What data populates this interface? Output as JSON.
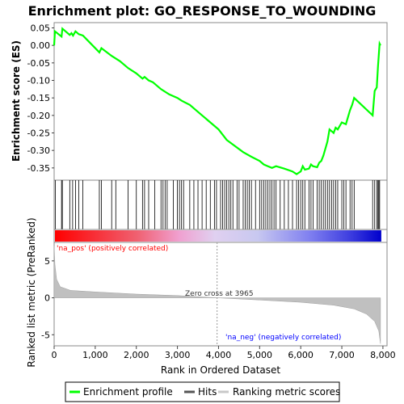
{
  "chart_data": {
    "type": "line",
    "title": "Enrichment plot: GO_RESPONSE_TO_WOUNDING",
    "xlabel": "Rank in Ordered Dataset",
    "ylabel_top": "Enrichment score (ES)",
    "ylabel_bottom": "Ranked list metric (PreRanked)",
    "xlim": [
      0,
      8100
    ],
    "ylim_top": [
      -0.385,
      0.065
    ],
    "ylim_bottom": [
      -6.5,
      7.5
    ],
    "x_ticks": [
      0,
      1000,
      2000,
      3000,
      4000,
      5000,
      6000,
      7000,
      8000
    ],
    "x_tick_labels": [
      "0",
      "1,000",
      "2,000",
      "3,000",
      "4,000",
      "5,000",
      "6,000",
      "7,000",
      "8,000"
    ],
    "y_ticks_top": [
      0.05,
      0.0,
      -0.05,
      -0.1,
      -0.15,
      -0.2,
      -0.25,
      -0.3,
      -0.35
    ],
    "y_tick_labels_top": [
      "0.05",
      "0.00",
      "-0.05",
      "-0.10",
      "-0.15",
      "-0.20",
      "-0.25",
      "-0.30",
      "-0.35"
    ],
    "y_ticks_bottom": [
      5,
      0,
      -5
    ],
    "y_tick_labels_bottom": [
      "5",
      "0",
      "-5"
    ],
    "enrichment_profile": [
      [
        0,
        0.0
      ],
      [
        20,
        0.04
      ],
      [
        180,
        0.025
      ],
      [
        200,
        0.048
      ],
      [
        380,
        0.03
      ],
      [
        420,
        0.035
      ],
      [
        460,
        0.028
      ],
      [
        520,
        0.04
      ],
      [
        600,
        0.032
      ],
      [
        700,
        0.028
      ],
      [
        1100,
        -0.02
      ],
      [
        1150,
        -0.008
      ],
      [
        1400,
        -0.03
      ],
      [
        1600,
        -0.045
      ],
      [
        1800,
        -0.065
      ],
      [
        2000,
        -0.08
      ],
      [
        2150,
        -0.095
      ],
      [
        2200,
        -0.09
      ],
      [
        2300,
        -0.1
      ],
      [
        2400,
        -0.105
      ],
      [
        2600,
        -0.125
      ],
      [
        2800,
        -0.14
      ],
      [
        3000,
        -0.15
      ],
      [
        3100,
        -0.158
      ],
      [
        3300,
        -0.17
      ],
      [
        3600,
        -0.2
      ],
      [
        4000,
        -0.24
      ],
      [
        4200,
        -0.27
      ],
      [
        4600,
        -0.305
      ],
      [
        4800,
        -0.318
      ],
      [
        5000,
        -0.33
      ],
      [
        5100,
        -0.34
      ],
      [
        5200,
        -0.345
      ],
      [
        5300,
        -0.35
      ],
      [
        5400,
        -0.345
      ],
      [
        5600,
        -0.352
      ],
      [
        5800,
        -0.36
      ],
      [
        5900,
        -0.368
      ],
      [
        6000,
        -0.36
      ],
      [
        6050,
        -0.345
      ],
      [
        6100,
        -0.355
      ],
      [
        6200,
        -0.352
      ],
      [
        6250,
        -0.34
      ],
      [
        6300,
        -0.345
      ],
      [
        6400,
        -0.348
      ],
      [
        6450,
        -0.335
      ],
      [
        6500,
        -0.33
      ],
      [
        6550,
        -0.315
      ],
      [
        6600,
        -0.295
      ],
      [
        6650,
        -0.275
      ],
      [
        6700,
        -0.24
      ],
      [
        6800,
        -0.25
      ],
      [
        6850,
        -0.235
      ],
      [
        6900,
        -0.24
      ],
      [
        7000,
        -0.22
      ],
      [
        7100,
        -0.225
      ],
      [
        7200,
        -0.185
      ],
      [
        7250,
        -0.17
      ],
      [
        7300,
        -0.15
      ],
      [
        7750,
        -0.2
      ],
      [
        7800,
        -0.13
      ],
      [
        7850,
        -0.12
      ],
      [
        7880,
        -0.06
      ],
      [
        7920,
        0.005
      ],
      [
        7940,
        0.0
      ]
    ],
    "hits": [
      30,
      180,
      200,
      380,
      450,
      520,
      600,
      700,
      1100,
      1150,
      1400,
      1500,
      1800,
      2000,
      2150,
      2200,
      2300,
      2450,
      2600,
      2650,
      2700,
      2750,
      2900,
      3000,
      3050,
      3100,
      3150,
      3300,
      3400,
      3500,
      3600,
      3700,
      3800,
      3900,
      3950,
      4050,
      4100,
      4150,
      4200,
      4250,
      4300,
      4350,
      4450,
      4500,
      4600,
      4650,
      4700,
      4750,
      4800,
      4900,
      5000,
      5050,
      5100,
      5150,
      5200,
      5250,
      5300,
      5350,
      5400,
      5500,
      5600,
      5700,
      5800,
      5900,
      5950,
      6000,
      6050,
      6100,
      6200,
      6250,
      6300,
      6400,
      6450,
      6500,
      6550,
      6600,
      6650,
      6700,
      6750,
      6800,
      6850,
      6900,
      7000,
      7050,
      7100,
      7200,
      7250,
      7300,
      7750,
      7800,
      7850,
      7880,
      7900,
      7920
    ],
    "ranked_metric_profile": [
      [
        0,
        7.0
      ],
      [
        20,
        4.5
      ],
      [
        60,
        2.5
      ],
      [
        150,
        1.5
      ],
      [
        400,
        1.0
      ],
      [
        1000,
        0.8
      ],
      [
        2000,
        0.5
      ],
      [
        3000,
        0.3
      ],
      [
        3965,
        0.0
      ],
      [
        5000,
        -0.3
      ],
      [
        6000,
        -0.6
      ],
      [
        6800,
        -1.0
      ],
      [
        7300,
        -1.5
      ],
      [
        7600,
        -2.2
      ],
      [
        7800,
        -3.2
      ],
      [
        7900,
        -4.5
      ],
      [
        7940,
        -6.2
      ]
    ],
    "zero_cross_label": "Zero cross at 3965",
    "zero_cross_rank": 3965,
    "pos_label": "'na_pos' (positively correlated)",
    "neg_label": "'na_neg' (negatively correlated)",
    "colors": {
      "profile": "#00ff00",
      "hits": "#000000",
      "metric": "#c0c0c0",
      "pos_text": "#ff0000",
      "neg_text": "#0000ff",
      "zero_line": "#999999"
    },
    "legend": [
      {
        "label": "Enrichment profile",
        "color": "#00ff00"
      },
      {
        "label": "Hits",
        "color": "#555555"
      },
      {
        "label": "Ranking metric scores",
        "color": "#c8c8c8"
      }
    ]
  }
}
